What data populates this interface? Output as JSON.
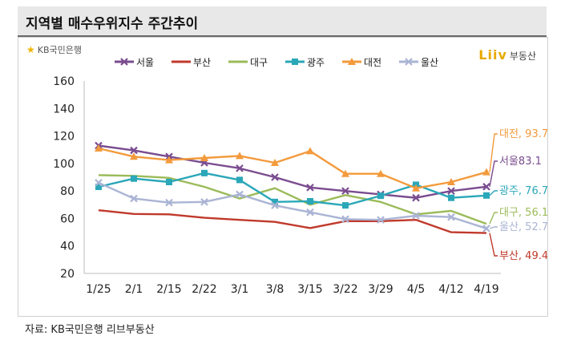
{
  "header": {
    "title": "지역별 매수우위지수 주간추이"
  },
  "brand": {
    "left_logo": "KB국민은행",
    "right_logo_mark": "Liiv",
    "right_logo_text": "부동산"
  },
  "source": "자료: KB국민은행 리브부동산",
  "chart_data": {
    "type": "line",
    "title": "지역별 매수우위지수 주간추이",
    "categories": [
      "1/25",
      "2/1",
      "2/15",
      "2/22",
      "3/1",
      "3/8",
      "3/15",
      "3/22",
      "3/29",
      "4/5",
      "4/12",
      "4/19"
    ],
    "ylim": [
      20,
      160
    ],
    "yticks": [
      20,
      40,
      60,
      80,
      100,
      120,
      140,
      160
    ],
    "grid": false,
    "legend_position": "top",
    "series": [
      {
        "name": "서울",
        "color": "#7a4c8f",
        "marker": "x",
        "values": [
          113,
          109.5,
          105,
          100.5,
          96.5,
          90,
          82.5,
          80,
          77.5,
          75,
          80,
          83.1
        ],
        "end_label": "서울83.1"
      },
      {
        "name": "부산",
        "color": "#c0392b",
        "marker": "none",
        "values": [
          66,
          63.3,
          63,
          60.5,
          59,
          57.5,
          53,
          58,
          58,
          59,
          50,
          49.4
        ],
        "end_label": "부산, 49.4"
      },
      {
        "name": "대구",
        "color": "#9bbb59",
        "marker": "none",
        "values": [
          91.5,
          91,
          89.5,
          83,
          74.5,
          82,
          70,
          77,
          72,
          63,
          65.5,
          56.1
        ],
        "end_label": "대구, 56.1"
      },
      {
        "name": "광주",
        "color": "#2aa7b8",
        "marker": "square",
        "values": [
          83,
          89,
          86.5,
          93,
          88,
          72,
          72.5,
          69.5,
          76.5,
          84.5,
          75,
          76.7
        ],
        "end_label": "광주, 76.7"
      },
      {
        "name": "대전",
        "color": "#f39a3c",
        "marker": "triangle",
        "values": [
          111,
          105,
          102.5,
          104,
          105.5,
          100.5,
          109,
          92.5,
          92.5,
          82,
          86.5,
          93.7
        ],
        "end_label": "대전, 93.7"
      },
      {
        "name": "울산",
        "color": "#aab4d4",
        "marker": "x",
        "values": [
          86,
          74.5,
          71.5,
          72,
          77.5,
          69.5,
          64.5,
          59.5,
          59,
          62,
          61,
          52.7
        ],
        "end_label": "울산, 52.7"
      }
    ]
  }
}
